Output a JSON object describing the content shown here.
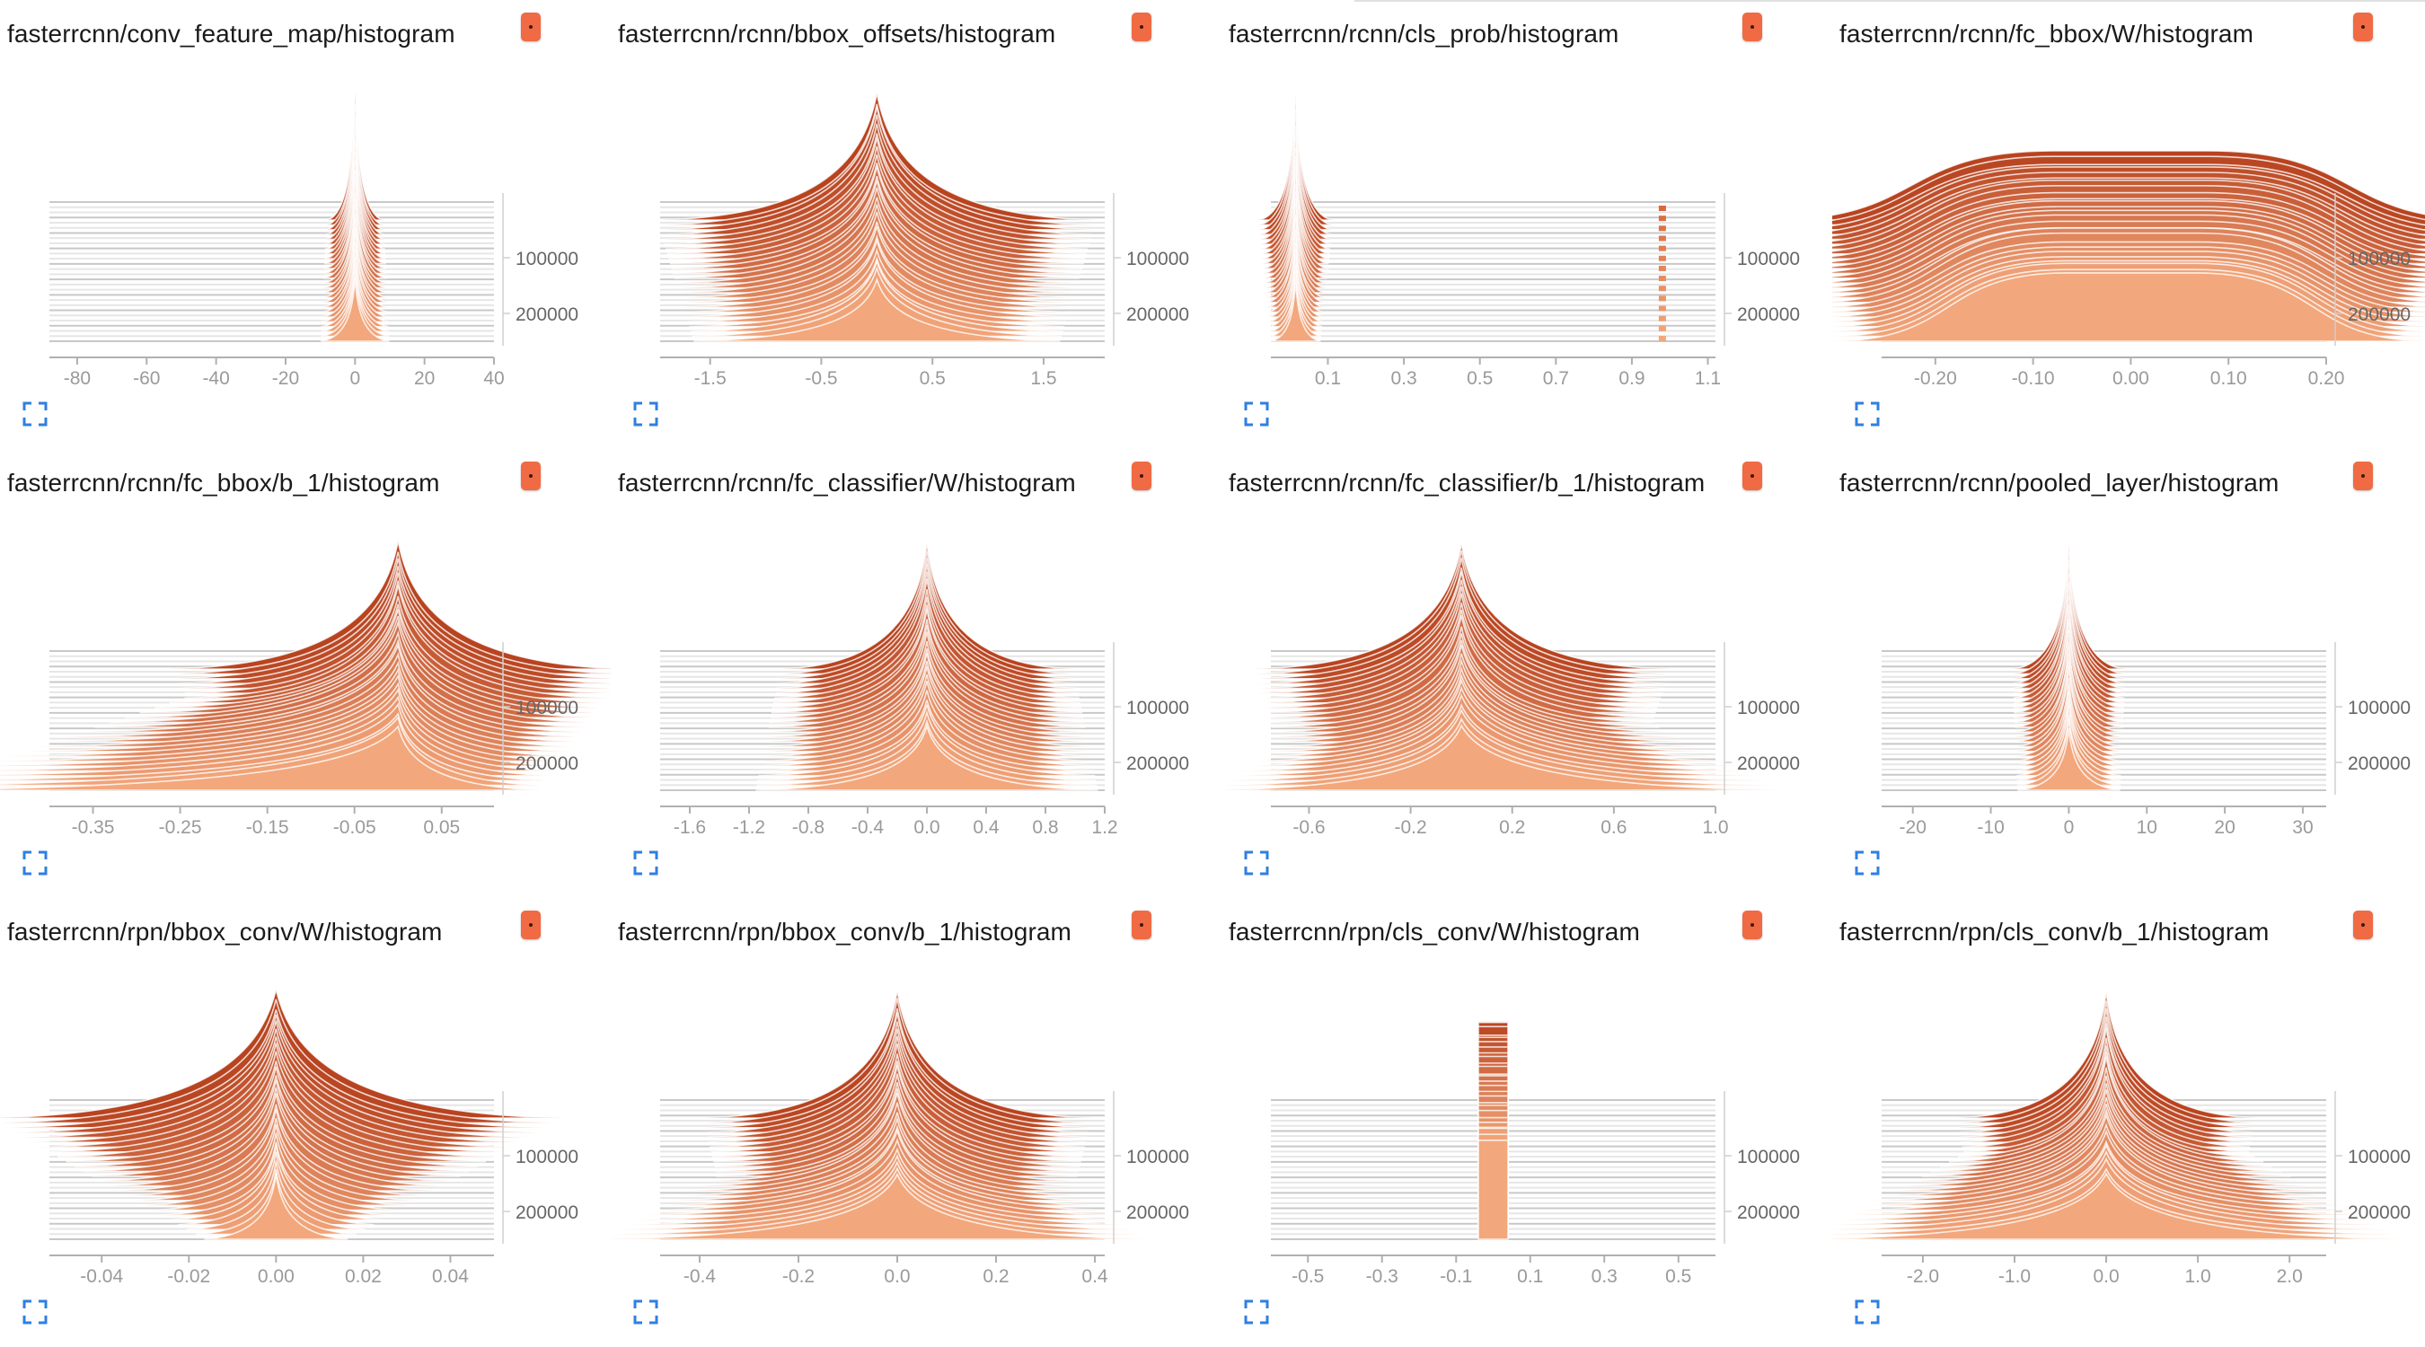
{
  "chart_data": [
    {
      "type": "histogram",
      "title": "fasterrcnn/conv_feature_map/histogram",
      "x_range": [
        -88,
        40
      ],
      "x_ticks": [
        "-80",
        "-60",
        "-40",
        "-20",
        "0",
        "20",
        "40"
      ],
      "x_tick_values": [
        -80,
        -60,
        -40,
        -20,
        0,
        20,
        40
      ],
      "y_ticks": [
        "100000",
        "200000"
      ],
      "y_tick_values": [
        100000,
        200000
      ],
      "steps": [
        0,
        250000
      ],
      "distribution": {
        "center": 0,
        "width": 3,
        "top_width": 2.5,
        "shape": "peak"
      }
    },
    {
      "type": "histogram",
      "title": "fasterrcnn/rcnn/bbox_offsets/histogram",
      "x_range": [
        -1.95,
        2.05
      ],
      "x_ticks": [
        "-1.5",
        "-0.5",
        "0.5",
        "1.5"
      ],
      "x_tick_values": [
        -1.5,
        -0.5,
        0.5,
        1.5
      ],
      "y_ticks": [
        "100000",
        "200000"
      ],
      "y_tick_values": [
        100000,
        200000
      ],
      "steps": [
        0,
        250000
      ],
      "distribution": {
        "center": 0,
        "width": 0.5,
        "top_width": 0.6,
        "shape": "peak"
      }
    },
    {
      "type": "histogram",
      "title": "fasterrcnn/rcnn/cls_prob/histogram",
      "x_range": [
        -0.05,
        1.12
      ],
      "x_ticks": [
        "0.1",
        "0.3",
        "0.5",
        "0.7",
        "0.9",
        "1.1"
      ],
      "x_tick_values": [
        0.1,
        0.3,
        0.5,
        0.7,
        0.9,
        1.1
      ],
      "y_ticks": [
        "100000",
        "200000"
      ],
      "y_tick_values": [
        100000,
        200000
      ],
      "steps": [
        0,
        250000
      ],
      "distribution": {
        "center": 0.015,
        "width": 0.02,
        "top_width": 0.03,
        "shape": "spike",
        "secondary_center": 0.985
      }
    },
    {
      "type": "histogram",
      "title": "fasterrcnn/rcnn/fc_bbox/W/histogram",
      "x_range": [
        -0.255,
        0.2
      ],
      "x_ticks": [
        "-0.20",
        "-0.10",
        "0.00",
        "0.10",
        "0.20"
      ],
      "x_tick_values": [
        -0.2,
        -0.1,
        0,
        0.1,
        0.2
      ],
      "y_ticks": [
        "100000",
        "200000"
      ],
      "y_tick_values": [
        100000,
        200000
      ],
      "steps": [
        0,
        250000
      ],
      "distribution": {
        "center": 0,
        "width": 0.1,
        "top_width": 0.12,
        "shape": "plateau"
      }
    },
    {
      "type": "histogram",
      "title": "fasterrcnn/rcnn/fc_bbox/b_1/histogram",
      "x_range": [
        -0.4,
        0.11
      ],
      "x_ticks": [
        "-0.35",
        "-0.25",
        "-0.15",
        "-0.05",
        "0.05"
      ],
      "x_tick_values": [
        -0.35,
        -0.25,
        -0.15,
        -0.05,
        0.05
      ],
      "y_ticks": [
        "100000",
        "200000"
      ],
      "y_tick_values": [
        100000,
        200000
      ],
      "steps": [
        0,
        250000
      ],
      "distribution": {
        "center": 0.0,
        "width": 0.05,
        "top_width": 0.08,
        "shape": "skewed",
        "spread_left": 0.38,
        "spread_right": 0.05
      }
    },
    {
      "type": "histogram",
      "title": "fasterrcnn/rcnn/fc_classifier/W/histogram",
      "x_range": [
        -1.8,
        1.2
      ],
      "x_ticks": [
        "-1.6",
        "-1.2",
        "-0.8",
        "-0.4",
        "0.0",
        "0.4",
        "0.8",
        "1.2"
      ],
      "x_tick_values": [
        -1.6,
        -1.2,
        -0.8,
        -0.4,
        0,
        0.4,
        0.8,
        1.2
      ],
      "y_ticks": [
        "100000",
        "200000"
      ],
      "y_tick_values": [
        100000,
        200000
      ],
      "steps": [
        0,
        250000
      ],
      "distribution": {
        "center": 0,
        "width": 0.35,
        "top_width": 0.3,
        "shape": "peak"
      }
    },
    {
      "type": "histogram",
      "title": "fasterrcnn/rcnn/fc_classifier/b_1/histogram",
      "x_range": [
        -0.75,
        1.0
      ],
      "x_ticks": [
        "-0.6",
        "-0.2",
        "0.2",
        "0.6",
        "1.0"
      ],
      "x_tick_values": [
        -0.6,
        -0.2,
        0.2,
        0.6,
        1.0
      ],
      "y_ticks": [
        "100000",
        "200000"
      ],
      "y_tick_values": [
        100000,
        200000
      ],
      "steps": [
        0,
        250000
      ],
      "distribution": {
        "center": 0,
        "width": 0.2,
        "top_width": 0.25,
        "shape": "spread",
        "spread_left": 0.65,
        "spread_right": 0.85
      }
    },
    {
      "type": "histogram",
      "title": "fasterrcnn/rcnn/pooled_layer/histogram",
      "x_range": [
        -24,
        33
      ],
      "x_ticks": [
        "-20",
        "-10",
        "0",
        "10",
        "20",
        "30"
      ],
      "x_tick_values": [
        -20,
        -10,
        0,
        10,
        20,
        30
      ],
      "y_ticks": [
        "100000",
        "200000"
      ],
      "y_tick_values": [
        100000,
        200000
      ],
      "steps": [
        0,
        250000
      ],
      "distribution": {
        "center": 0,
        "width": 2,
        "top_width": 2.2,
        "shape": "peak"
      }
    },
    {
      "type": "histogram",
      "title": "fasterrcnn/rpn/bbox_conv/W/histogram",
      "x_range": [
        -0.052,
        0.05
      ],
      "x_ticks": [
        "-0.04",
        "-0.02",
        "0.00",
        "0.02",
        "0.04"
      ],
      "x_tick_values": [
        -0.04,
        -0.02,
        0,
        0.02,
        0.04
      ],
      "y_ticks": [
        "100000",
        "200000"
      ],
      "y_tick_values": [
        100000,
        200000
      ],
      "steps": [
        0,
        250000
      ],
      "distribution": {
        "center": 0,
        "width": 0.005,
        "top_width": 0.02,
        "shape": "peak"
      }
    },
    {
      "type": "histogram",
      "title": "fasterrcnn/rpn/bbox_conv/b_1/histogram",
      "x_range": [
        -0.48,
        0.42
      ],
      "x_ticks": [
        "-0.4",
        "-0.2",
        "0.0",
        "0.2",
        "0.4"
      ],
      "x_tick_values": [
        -0.4,
        -0.2,
        0,
        0.2,
        0.4
      ],
      "y_ticks": [
        "100000",
        "200000"
      ],
      "y_tick_values": [
        100000,
        200000
      ],
      "steps": [
        0,
        250000
      ],
      "distribution": {
        "center": 0,
        "width": 0.1,
        "top_width": 0.12,
        "shape": "spread",
        "spread_left": 0.4,
        "spread_right": 0.34
      }
    },
    {
      "type": "histogram",
      "title": "fasterrcnn/rpn/cls_conv/W/histogram",
      "x_range": [
        -0.6,
        0.6
      ],
      "x_ticks": [
        "-0.5",
        "-0.3",
        "-0.1",
        "0.1",
        "0.3",
        "0.5"
      ],
      "x_tick_values": [
        -0.5,
        -0.3,
        -0.1,
        0.1,
        0.3,
        0.5
      ],
      "y_ticks": [
        "100000",
        "200000"
      ],
      "y_tick_values": [
        100000,
        200000
      ],
      "steps": [
        0,
        250000
      ],
      "distribution": {
        "center": 0,
        "width": 0.04,
        "top_width": 0.05,
        "shape": "column"
      }
    },
    {
      "type": "histogram",
      "title": "fasterrcnn/rpn/cls_conv/b_1/histogram",
      "x_range": [
        -2.45,
        2.4
      ],
      "x_ticks": [
        "-2.0",
        "-1.0",
        "0.0",
        "1.0",
        "2.0"
      ],
      "x_tick_values": [
        -2,
        -1,
        0,
        1,
        2
      ],
      "y_ticks": [
        "100000",
        "200000"
      ],
      "y_tick_values": [
        100000,
        200000
      ],
      "steps": [
        0,
        250000
      ],
      "distribution": {
        "center": 0,
        "width": 0.4,
        "top_width": 0.5,
        "shape": "spread",
        "spread_left": 2.2,
        "spread_right": 2.2
      }
    }
  ]
}
